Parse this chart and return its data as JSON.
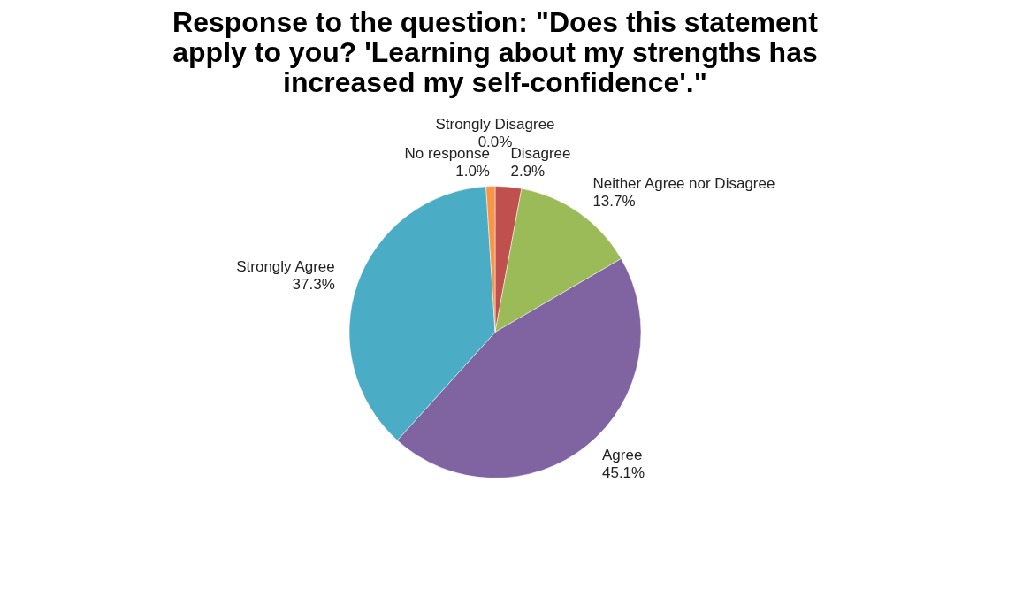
{
  "chart_data": {
    "type": "pie",
    "title": "Response to the question: \"Does this statement apply to you? 'Learning about my strengths has increased my self-confidence'.\"",
    "categories": [
      "Strongly Disagree",
      "Disagree",
      "Neither Agree nor Disagree",
      "Agree",
      "Strongly Agree",
      "No response"
    ],
    "values": [
      0.0,
      2.9,
      13.7,
      45.1,
      37.3,
      1.0
    ],
    "colors": [
      "#4f81bd",
      "#c0504d",
      "#9bbb59",
      "#8064a2",
      "#4bacc6",
      "#f79646"
    ],
    "value_labels": [
      "0.0%",
      "2.9%",
      "13.7%",
      "45.1%",
      "37.3%",
      "1.0%"
    ],
    "legend": false
  }
}
